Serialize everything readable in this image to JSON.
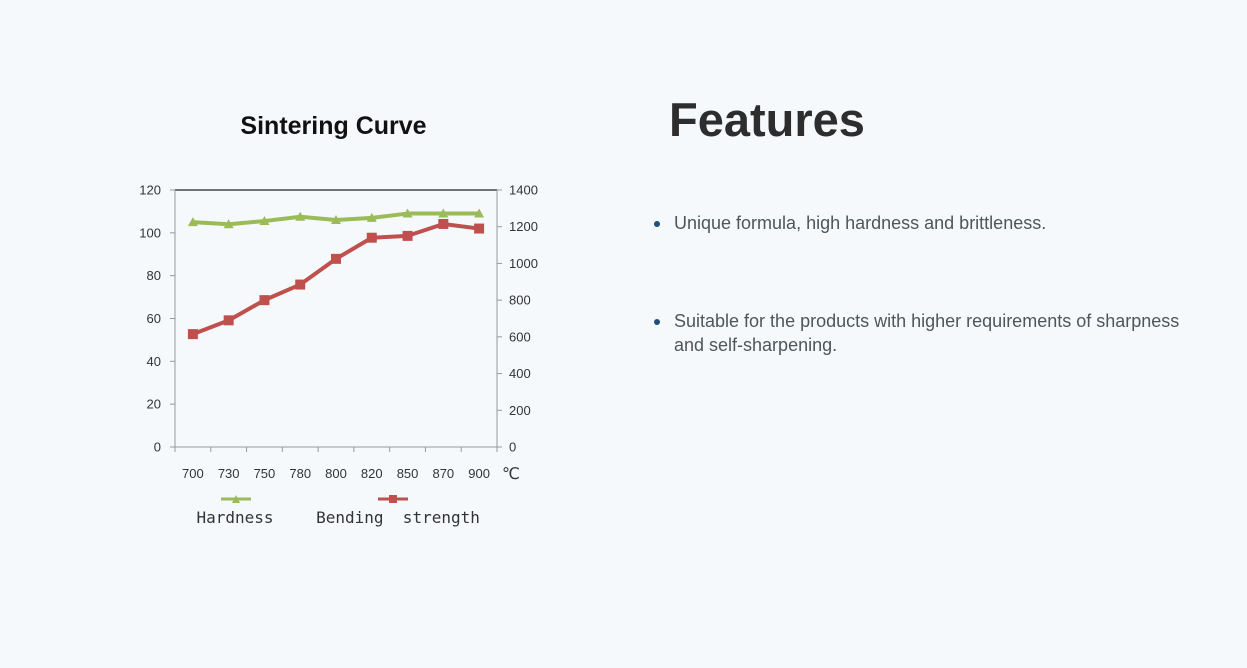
{
  "chart_data": {
    "type": "line",
    "title": "Sintering Curve",
    "xlabel": "",
    "x_unit": "℃",
    "categories": [
      "700",
      "730",
      "750",
      "780",
      "800",
      "820",
      "850",
      "870",
      "900"
    ],
    "y_left": {
      "ylim": [
        0,
        120
      ],
      "ticks": [
        "0",
        "20",
        "40",
        "60",
        "80",
        "100",
        "120"
      ]
    },
    "y_right": {
      "ylim": [
        0,
        1400
      ],
      "ticks": [
        "0",
        "200",
        "400",
        "600",
        "800",
        "1000",
        "1200",
        "1400"
      ]
    },
    "grid": false,
    "legend_position": "bottom",
    "series": [
      {
        "name": "Hardness",
        "axis": "left",
        "marker": "triangle",
        "color": "#9bbb59",
        "values": [
          105,
          104,
          105.5,
          107.5,
          106,
          107,
          109,
          109,
          109
        ]
      },
      {
        "name": "Bending  strength",
        "axis": "right",
        "marker": "square",
        "color": "#c0504d",
        "values": [
          615,
          690,
          800,
          885,
          1025,
          1140,
          1150,
          1215,
          1190
        ]
      }
    ]
  },
  "features": {
    "heading": "Features",
    "items": [
      {
        "text": "Unique formula, high hardness and brittleness."
      },
      {
        "text": "Suitable for the products with higher requirements of sharpness and self-sharpening."
      }
    ]
  }
}
